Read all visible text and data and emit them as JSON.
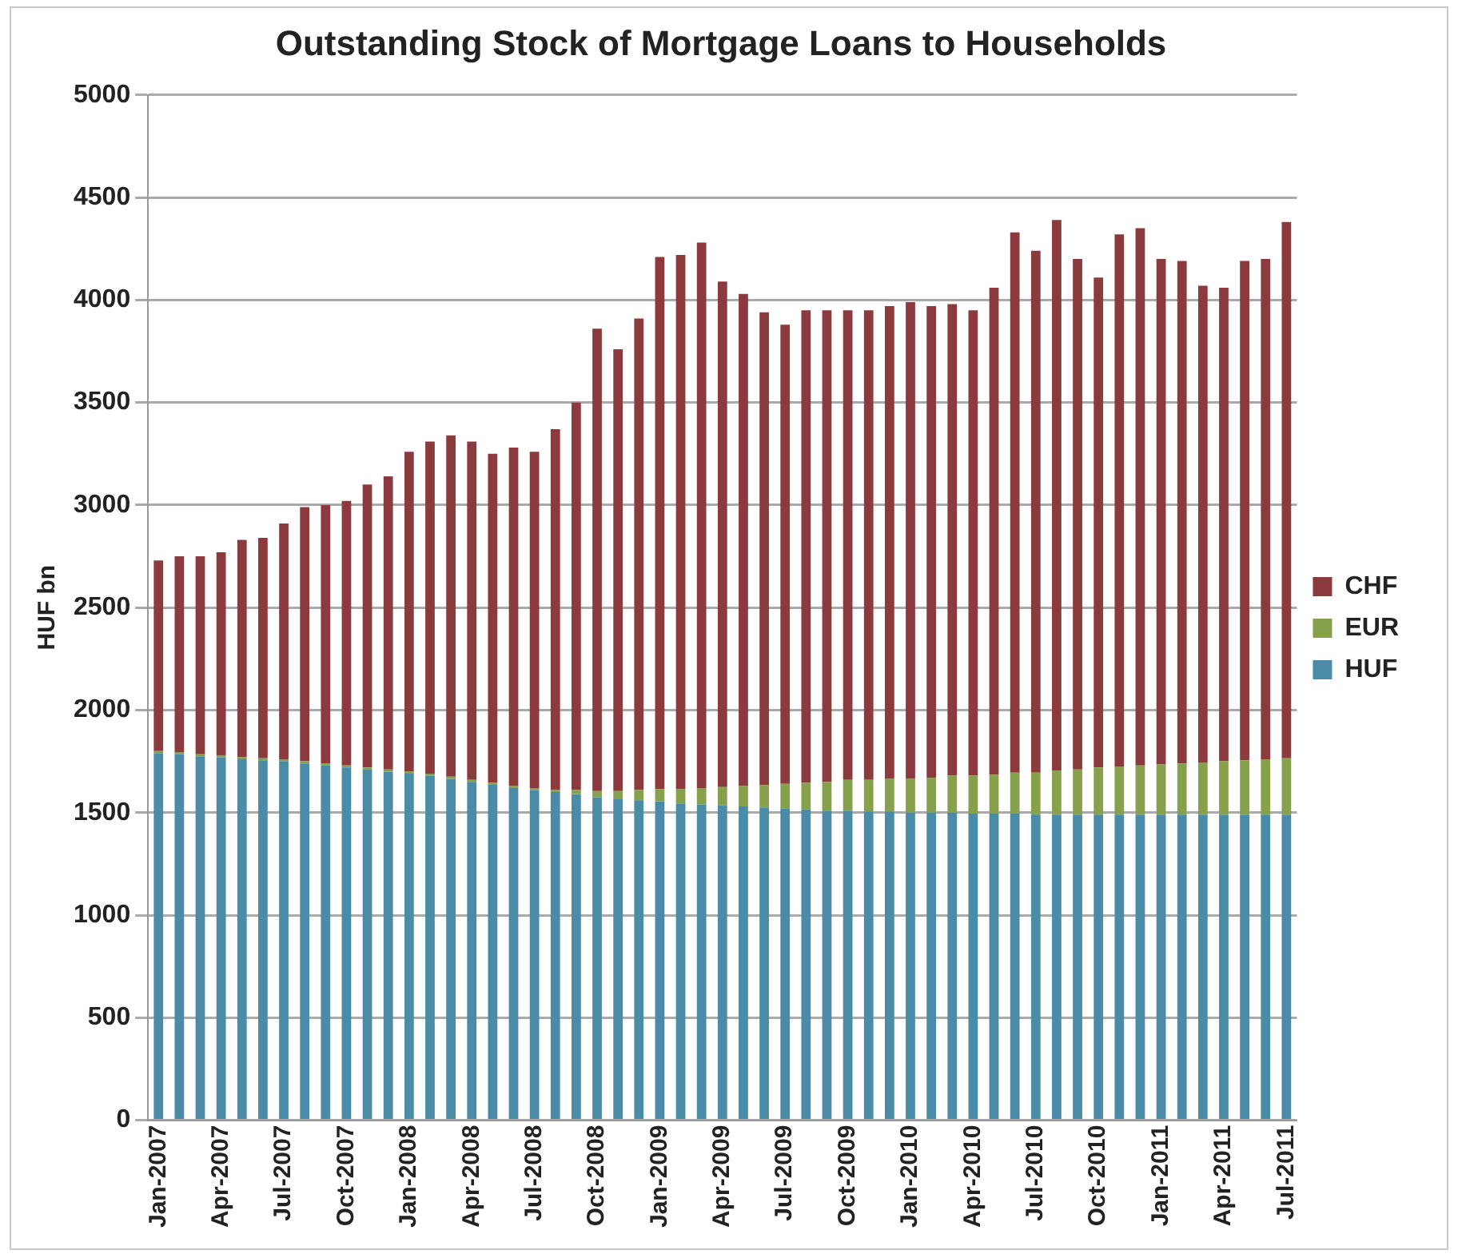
{
  "chart_data": {
    "type": "bar",
    "title": "Outstanding Stock of Mortgage Loans to Households",
    "ylabel": "HUF bn",
    "stacked": true,
    "categories": [
      "Jan-2007",
      null,
      null,
      "Apr-2007",
      null,
      null,
      "Jul-2007",
      null,
      null,
      "Oct-2007",
      null,
      null,
      "Jan-2008",
      null,
      null,
      "Apr-2008",
      null,
      null,
      "Jul-2008",
      null,
      null,
      "Oct-2008",
      null,
      null,
      "Jan-2009",
      null,
      null,
      "Apr-2009",
      null,
      null,
      "Jul-2009",
      null,
      null,
      "Oct-2009",
      null,
      null,
      "Jan-2010",
      null,
      null,
      "Apr-2010",
      null,
      null,
      "Jul-2010",
      null,
      null,
      "Oct-2010",
      null,
      null,
      "Jan-2011",
      null,
      null,
      "Apr-2011",
      null,
      null,
      "Jul-2011"
    ],
    "series": [
      {
        "name": "HUF",
        "color": "#4a8ba8",
        "values": [
          1790,
          1785,
          1775,
          1770,
          1760,
          1755,
          1750,
          1740,
          1730,
          1720,
          1710,
          1700,
          1690,
          1680,
          1665,
          1650,
          1635,
          1620,
          1610,
          1600,
          1590,
          1575,
          1565,
          1560,
          1555,
          1545,
          1540,
          1535,
          1530,
          1525,
          1520,
          1515,
          1510,
          1510,
          1505,
          1505,
          1500,
          1500,
          1500,
          1495,
          1495,
          1495,
          1490,
          1490,
          1490,
          1490,
          1490,
          1490,
          1490,
          1490,
          1490,
          1490,
          1490,
          1490,
          1490
        ]
      },
      {
        "name": "EUR",
        "color": "#86a04c",
        "values": [
          10,
          10,
          10,
          10,
          10,
          10,
          10,
          10,
          10,
          10,
          10,
          10,
          10,
          10,
          10,
          10,
          10,
          10,
          10,
          10,
          20,
          30,
          40,
          50,
          60,
          70,
          80,
          90,
          100,
          110,
          120,
          130,
          140,
          150,
          155,
          160,
          165,
          170,
          180,
          185,
          190,
          200,
          205,
          215,
          220,
          230,
          235,
          240,
          245,
          250,
          255,
          260,
          265,
          270,
          275
        ]
      },
      {
        "name": "CHF",
        "color": "#8b3a3e",
        "values": [
          930,
          955,
          965,
          990,
          1060,
          1075,
          1150,
          1240,
          1260,
          1290,
          1380,
          1430,
          1560,
          1620,
          1665,
          1650,
          1605,
          1650,
          1640,
          1760,
          1890,
          2255,
          2155,
          2300,
          2595,
          2605,
          2660,
          2465,
          2400,
          2305,
          2240,
          2305,
          2300,
          2290,
          2290,
          2305,
          2325,
          2300,
          2300,
          2270,
          2375,
          2635,
          2545,
          2685,
          2490,
          2390,
          2595,
          2620,
          2465,
          2450,
          2325,
          2310,
          2435,
          2440,
          2615
        ]
      }
    ],
    "ylim": [
      0,
      5000
    ],
    "yticks": [
      0,
      500,
      1000,
      1500,
      2000,
      2500,
      3000,
      3500,
      4000,
      4500,
      5000
    ],
    "grid": "y",
    "legend": "right"
  }
}
